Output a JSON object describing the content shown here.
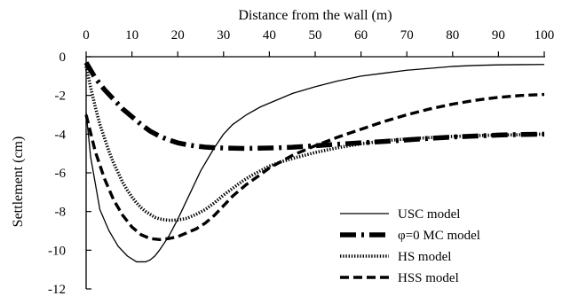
{
  "chart_data": {
    "type": "line",
    "xlabel": "Distance from the wall (m)",
    "ylabel": "Settlement (cm)",
    "x_axis_position": "top",
    "xlim": [
      0,
      100
    ],
    "ylim": [
      -12,
      0
    ],
    "x_ticks": [
      0,
      10,
      20,
      30,
      40,
      50,
      60,
      70,
      80,
      90,
      100
    ],
    "y_ticks": [
      0,
      -2,
      -4,
      -6,
      -8,
      -10,
      -12
    ],
    "grid": false,
    "legend_position": "bottom-right",
    "series": [
      {
        "name": "USC model",
        "style": "solid",
        "x": [
          0,
          1,
          3,
          5,
          7,
          9,
          11,
          12,
          13,
          14,
          15,
          16,
          18,
          20,
          22,
          25,
          28,
          30,
          32,
          35,
          38,
          40,
          43,
          45,
          50,
          55,
          60,
          65,
          70,
          75,
          80,
          85,
          90,
          95,
          100
        ],
        "y": [
          -2.9,
          -5.2,
          -7.9,
          -9.0,
          -9.8,
          -10.3,
          -10.6,
          -10.6,
          -10.6,
          -10.5,
          -10.3,
          -10.0,
          -9.3,
          -8.4,
          -7.4,
          -5.9,
          -4.7,
          -4.0,
          -3.5,
          -3.0,
          -2.6,
          -2.4,
          -2.1,
          -1.9,
          -1.55,
          -1.25,
          -1.0,
          -0.85,
          -0.7,
          -0.6,
          -0.5,
          -0.45,
          -0.42,
          -0.41,
          -0.4
        ]
      },
      {
        "name": "φ=0 MC model",
        "style": "long-dash-dot",
        "x": [
          0,
          2,
          4,
          6,
          8,
          10,
          12,
          14,
          16,
          18,
          20,
          22,
          24,
          26,
          28,
          30,
          35,
          40,
          45,
          50,
          55,
          60,
          65,
          70,
          75,
          80,
          85,
          90,
          95,
          100
        ],
        "y": [
          -0.3,
          -1.1,
          -1.7,
          -2.2,
          -2.7,
          -3.1,
          -3.5,
          -3.85,
          -4.1,
          -4.3,
          -4.45,
          -4.55,
          -4.62,
          -4.67,
          -4.7,
          -4.72,
          -4.74,
          -4.72,
          -4.68,
          -4.6,
          -4.52,
          -4.45,
          -4.38,
          -4.3,
          -4.22,
          -4.15,
          -4.1,
          -4.05,
          -4.02,
          -4.0
        ]
      },
      {
        "name": "HS model",
        "style": "dotted-triangles",
        "x": [
          0,
          1,
          2,
          3,
          4,
          5,
          6,
          7,
          8,
          9,
          10,
          11,
          12,
          13,
          14,
          15,
          16,
          17,
          18,
          19,
          20,
          21,
          22,
          24,
          26,
          28,
          30,
          32,
          34,
          36,
          38,
          40,
          43,
          46,
          50,
          55,
          60,
          65,
          70,
          75,
          80,
          85,
          90,
          95,
          100
        ],
        "y": [
          -0.5,
          -1.6,
          -2.6,
          -3.5,
          -4.2,
          -4.9,
          -5.5,
          -6.0,
          -6.5,
          -6.9,
          -7.25,
          -7.55,
          -7.8,
          -8.0,
          -8.15,
          -8.3,
          -8.38,
          -8.42,
          -8.45,
          -8.45,
          -8.43,
          -8.4,
          -8.35,
          -8.15,
          -7.9,
          -7.55,
          -7.15,
          -6.8,
          -6.45,
          -6.15,
          -5.9,
          -5.65,
          -5.4,
          -5.2,
          -4.95,
          -4.7,
          -4.5,
          -4.35,
          -4.25,
          -4.18,
          -4.12,
          -4.08,
          -4.05,
          -4.03,
          -4.0
        ]
      },
      {
        "name": "HSS model",
        "style": "short-dash",
        "x": [
          0,
          2,
          4,
          6,
          8,
          10,
          12,
          14,
          16,
          18,
          20,
          22,
          24,
          26,
          28,
          30,
          32,
          35,
          38,
          40,
          45,
          50,
          55,
          60,
          65,
          70,
          75,
          80,
          85,
          90,
          95,
          100
        ],
        "y": [
          -3.0,
          -4.9,
          -6.3,
          -7.4,
          -8.2,
          -8.8,
          -9.2,
          -9.4,
          -9.45,
          -9.4,
          -9.3,
          -9.1,
          -8.9,
          -8.6,
          -8.2,
          -7.7,
          -7.2,
          -6.6,
          -6.1,
          -5.75,
          -5.1,
          -4.6,
          -4.15,
          -3.75,
          -3.35,
          -3.0,
          -2.7,
          -2.45,
          -2.25,
          -2.1,
          -2.0,
          -1.95
        ]
      }
    ]
  }
}
